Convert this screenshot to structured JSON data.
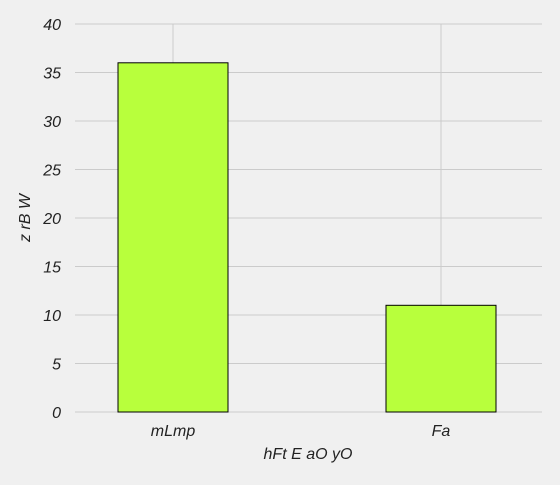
{
  "chart_data": {
    "type": "bar",
    "title": "",
    "xlabel": "hFt E aO yO",
    "ylabel": "z rB W",
    "categories": [
      "mLmp",
      "Fa"
    ],
    "values": [
      36,
      11
    ],
    "ylim": [
      0,
      40
    ],
    "yticks": [
      "0",
      "5",
      "10",
      "15",
      "20",
      "25",
      "30",
      "35",
      "40"
    ],
    "grid": true,
    "legend": "none",
    "colors": {
      "bar_fill": "#b8ff3c",
      "bar_edge": "#000000",
      "grid": "#cbcbcb",
      "background": "#f0f0f0",
      "text": "#222222"
    }
  }
}
